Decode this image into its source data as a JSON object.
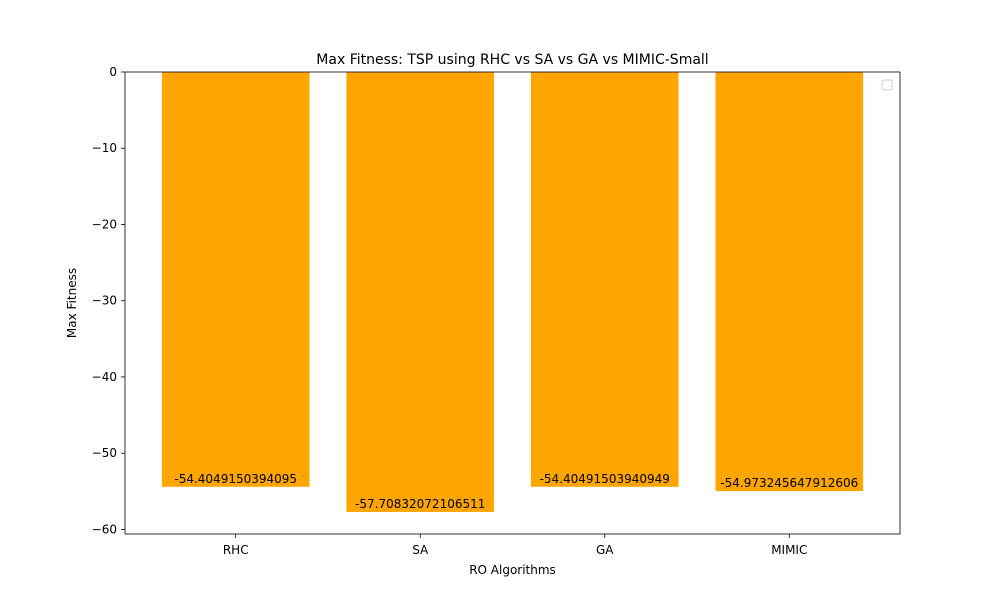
{
  "chart_data": {
    "type": "bar",
    "title": "Max Fitness: TSP using RHC vs SA vs GA vs MIMIC-Small",
    "xlabel": "RO Algorithms",
    "ylabel": "Max Fitness",
    "categories": [
      "RHC",
      "SA",
      "GA",
      "MIMIC"
    ],
    "values": [
      -54.4049150394095,
      -57.70832072106511,
      -54.40491503940949,
      -54.973245647912606
    ],
    "value_labels": [
      "-54.4049150394095",
      "-57.70832072106511",
      "-54.40491503940949",
      "-54.973245647912606"
    ],
    "ylim": [
      -60.6,
      0
    ],
    "yticks": [
      0,
      -10,
      -20,
      -30,
      -40,
      -50,
      -60
    ],
    "ytick_labels": [
      "0",
      "−10",
      "−20",
      "−30",
      "−40",
      "−50",
      "−60"
    ],
    "bar_color": "#ffa500",
    "grid": false,
    "legend": {
      "placement": "top-right",
      "entries": []
    }
  }
}
